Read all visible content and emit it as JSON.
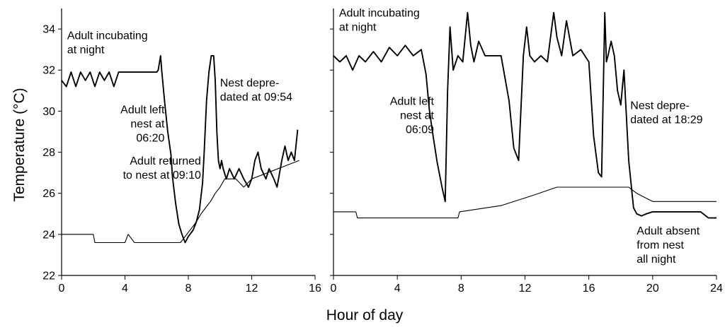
{
  "figure": {
    "ylabel": "Temperature (°C)",
    "xlabel": "Hour of day"
  },
  "chart_data": [
    {
      "type": "line",
      "title": "",
      "xlabel": "Hour of day",
      "ylabel": "Temperature (°C)",
      "xlim": [
        0,
        16
      ],
      "ylim": [
        22,
        35
      ],
      "xticks": [
        0,
        4,
        8,
        12,
        16
      ],
      "yticks": [
        22,
        24,
        26,
        28,
        30,
        32,
        34
      ],
      "grid": false,
      "series": [
        {
          "role": "nest",
          "x": [
            0,
            0.3,
            0.6,
            0.9,
            1.2,
            1.5,
            1.8,
            2.1,
            2.4,
            2.7,
            3.0,
            3.3,
            3.6,
            3.9,
            4.2,
            4.5,
            4.8,
            5.1,
            5.4,
            5.7,
            6.0,
            6.1,
            6.25,
            6.33,
            6.5,
            6.7,
            6.9,
            7.0,
            7.2,
            7.4,
            7.6,
            7.8,
            8.0,
            8.3,
            8.5,
            8.7,
            8.9,
            9.0,
            9.15,
            9.3,
            9.45,
            9.6,
            9.7,
            9.8,
            9.9,
            10.0,
            10.1,
            10.2,
            10.4,
            10.6,
            10.9,
            11.2,
            11.5,
            11.8,
            12.0,
            12.2,
            12.4,
            12.6,
            12.9,
            13.1,
            13.4,
            13.6,
            13.9,
            14.1,
            14.3,
            14.5,
            14.7,
            14.9
          ],
          "y": [
            31.5,
            31.2,
            31.9,
            31.2,
            31.9,
            31.5,
            31.9,
            31.2,
            31.9,
            31.5,
            31.9,
            31.2,
            31.9,
            31.9,
            31.9,
            31.9,
            31.9,
            31.9,
            31.9,
            31.9,
            31.9,
            32.0,
            32.7,
            31.9,
            30.5,
            29.0,
            27.9,
            26.8,
            25.5,
            24.5,
            24.0,
            23.6,
            23.9,
            24.2,
            24.6,
            25.2,
            26.5,
            28.0,
            30.5,
            31.9,
            32.7,
            32.7,
            31.5,
            29.0,
            27.6,
            27.2,
            27.6,
            27.2,
            26.7,
            27.2,
            26.7,
            27.2,
            26.7,
            26.3,
            26.7,
            27.6,
            28.0,
            27.2,
            26.7,
            27.2,
            26.7,
            26.3,
            27.6,
            28.3,
            27.6,
            28.0,
            27.6,
            29.1
          ]
        },
        {
          "role": "ambient",
          "x": [
            0,
            2.0,
            2.1,
            2.3,
            3.0,
            4.0,
            4.2,
            4.6,
            4.8,
            6.0,
            7.5,
            7.9,
            8.2,
            8.5,
            8.8,
            9.1,
            9.4,
            9.7,
            10.0,
            10.3,
            11.0,
            11.5,
            12.0,
            13.0,
            14.0,
            15.0
          ],
          "y": [
            24.0,
            24.0,
            23.6,
            23.6,
            23.6,
            23.6,
            24.0,
            23.6,
            23.6,
            23.6,
            23.6,
            24.0,
            24.3,
            24.6,
            25.0,
            25.3,
            25.6,
            26.0,
            26.3,
            26.7,
            26.7,
            26.3,
            26.7,
            27.0,
            27.3,
            27.6
          ]
        }
      ],
      "annotations": [
        {
          "lines": [
            "Adult incubating",
            "at night"
          ],
          "x": 0.35,
          "y": 33.5,
          "anchor": "start"
        },
        {
          "lines": [
            "Adult left",
            "nest at",
            "06:20"
          ],
          "x": 6.5,
          "y": 29.9,
          "anchor": "end"
        },
        {
          "lines": [
            "Adult returned",
            "to nest at 09:10"
          ],
          "x": 8.8,
          "y": 27.4,
          "anchor": "end"
        },
        {
          "lines": [
            "Nest depre-",
            "dated at 09:54"
          ],
          "x": 10.0,
          "y": 31.2,
          "anchor": "start"
        }
      ]
    },
    {
      "type": "line",
      "title": "",
      "xlabel": "Hour of day",
      "ylabel": "",
      "xlim": [
        0,
        24
      ],
      "ylim": [
        22,
        35
      ],
      "xticks": [
        0,
        4,
        8,
        12,
        16,
        20,
        24
      ],
      "yticks": [
        22,
        24,
        26,
        28,
        30,
        32,
        34
      ],
      "grid": false,
      "series": [
        {
          "role": "nest",
          "x": [
            0,
            0.4,
            0.8,
            1.2,
            1.6,
            2.0,
            2.5,
            3.0,
            3.5,
            4.0,
            4.5,
            5.0,
            5.5,
            5.8,
            6.0,
            6.2,
            6.5,
            6.8,
            7.0,
            7.15,
            7.3,
            7.5,
            7.8,
            8.1,
            8.4,
            8.6,
            8.8,
            9.1,
            9.5,
            10.0,
            10.5,
            11.0,
            11.3,
            11.6,
            11.9,
            12.1,
            12.3,
            12.6,
            13.0,
            13.4,
            13.8,
            14.0,
            14.3,
            14.6,
            15.0,
            15.5,
            16.0,
            16.3,
            16.6,
            16.8,
            17.0,
            17.1,
            17.2,
            17.4,
            17.6,
            17.8,
            18.0,
            18.2,
            18.5,
            18.8,
            19.0,
            19.3,
            19.6,
            20.0,
            20.5,
            21.0,
            22.0,
            23.0,
            23.5,
            24.0
          ],
          "y": [
            32.7,
            32.4,
            32.7,
            32.0,
            32.7,
            32.4,
            32.9,
            32.4,
            33.1,
            32.7,
            33.2,
            32.7,
            33.0,
            31.8,
            30.1,
            29.0,
            27.5,
            26.3,
            25.6,
            31.0,
            34.1,
            32.0,
            32.7,
            32.4,
            34.8,
            33.2,
            32.4,
            33.4,
            32.7,
            32.7,
            32.7,
            30.5,
            28.2,
            27.6,
            32.7,
            34.1,
            32.7,
            32.4,
            32.7,
            32.4,
            34.8,
            33.6,
            32.7,
            34.4,
            32.7,
            33.0,
            32.4,
            28.8,
            27.0,
            26.8,
            34.8,
            32.4,
            32.7,
            33.4,
            32.7,
            31.0,
            30.3,
            32.0,
            27.6,
            25.3,
            25.0,
            24.9,
            25.0,
            25.1,
            25.1,
            25.1,
            25.1,
            25.1,
            24.8,
            24.8
          ]
        },
        {
          "role": "ambient",
          "x": [
            0,
            1.0,
            1.4,
            1.5,
            4.0,
            7.8,
            7.9,
            10.5,
            12.5,
            14.0,
            16.0,
            18.0,
            18.5,
            19.0,
            20.0,
            24.0
          ],
          "y": [
            25.1,
            25.1,
            25.1,
            24.8,
            24.8,
            24.8,
            25.1,
            25.4,
            25.9,
            26.3,
            26.3,
            26.3,
            26.3,
            26.0,
            25.6,
            25.6
          ]
        }
      ],
      "annotations": [
        {
          "lines": [
            "Adult incubating",
            "at night"
          ],
          "x": 0.35,
          "y": 34.6,
          "anchor": "start"
        },
        {
          "lines": [
            "Adult left",
            "nest at",
            "06:09"
          ],
          "x": 6.3,
          "y": 30.3,
          "anchor": "end"
        },
        {
          "lines": [
            "Nest depre-",
            "dated at 18:29"
          ],
          "x": 18.6,
          "y": 30.1,
          "anchor": "start"
        },
        {
          "lines": [
            "Adult absent",
            "from nest",
            "all night"
          ],
          "x": 19.0,
          "y": 24.0,
          "anchor": "start"
        }
      ]
    }
  ]
}
